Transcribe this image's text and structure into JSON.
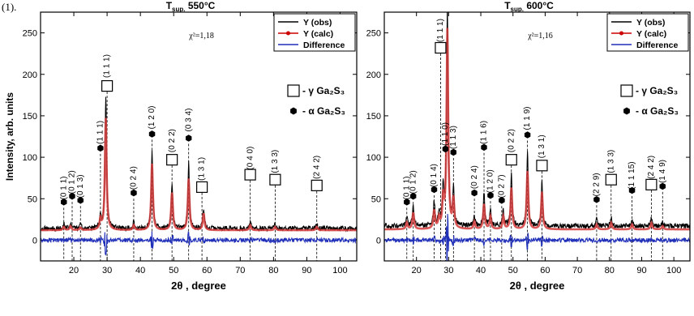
{
  "figure_label": "(1).",
  "colors": {
    "obs": "#000000",
    "calc": "#cc0000",
    "diff": "#1f2fb8",
    "fit_band": "#d23a3a"
  },
  "chart_data": [
    {
      "type": "line",
      "title": "T",
      "title_sub": "sup.",
      "title_rest": " 550°C",
      "xlabel": "2θ , degree",
      "ylabel": "Intensity, arb. units",
      "xlim": [
        10,
        105
      ],
      "ylim": [
        -25,
        275
      ],
      "xticks": [
        20,
        30,
        40,
        50,
        60,
        70,
        80,
        90,
        100
      ],
      "yticks": [
        0,
        50,
        100,
        150,
        200,
        250
      ],
      "chi2": "χ²=1,18",
      "legend": {
        "placement": "top-right",
        "entries": [
          "Y (obs)",
          "Y (calc)",
          "Difference"
        ]
      },
      "phase_legend": [
        {
          "symbol": "square",
          "label": "- γ Ga₂S₃"
        },
        {
          "symbol": "hexagon",
          "label": "- α Ga₂S₃"
        }
      ],
      "series": [
        {
          "name": "Y (obs)",
          "baseline": 14,
          "peaks": [
            [
              17,
              5
            ],
            [
              19,
              6
            ],
            [
              22,
              4
            ],
            [
              28,
              15
            ],
            [
              29.6,
              160
            ],
            [
              38,
              8
            ],
            [
              43.5,
              95
            ],
            [
              49.5,
              55
            ],
            [
              54.5,
              80
            ],
            [
              59,
              25
            ],
            [
              73,
              8
            ],
            [
              80.5,
              5
            ],
            [
              93,
              5
            ]
          ]
        },
        {
          "name": "Y (calc)",
          "baseline": 12,
          "peaks": [
            [
              17,
              4
            ],
            [
              19,
              5
            ],
            [
              22,
              3
            ],
            [
              28,
              12
            ],
            [
              29.6,
              135
            ],
            [
              38,
              6
            ],
            [
              43.5,
              80
            ],
            [
              49.5,
              45
            ],
            [
              54.5,
              62
            ],
            [
              59,
              20
            ],
            [
              73,
              6
            ],
            [
              80.5,
              4
            ],
            [
              93,
              4
            ]
          ]
        },
        {
          "name": "Difference",
          "baseline": 0
        }
      ],
      "annotations": [
        {
          "x": 17,
          "label": "(0 1 1)",
          "marker": "hexagon",
          "text_y": 63,
          "marker_y": 46
        },
        {
          "x": 19.5,
          "label": "(0 1 2)",
          "marker": "hexagon",
          "text_y": 70,
          "marker_y": 53
        },
        {
          "x": 22,
          "label": "(0 1 3)",
          "marker": "hexagon",
          "text_y": 65,
          "marker_y": 48
        },
        {
          "x": 28,
          "label": "(1 1 1)",
          "marker": "hexagon",
          "text_y": 130,
          "marker_y": 111
        },
        {
          "x": 30,
          "label": "(1 1 1)",
          "marker": "square",
          "text_y": 210,
          "marker_y": 186
        },
        {
          "x": 38,
          "label": "(0 2 4)",
          "marker": "hexagon",
          "text_y": 75,
          "marker_y": 57
        },
        {
          "x": 43.5,
          "label": "(1 2 0)",
          "marker": "hexagon",
          "text_y": 148,
          "marker_y": 128
        },
        {
          "x": 49.5,
          "label": "(0 2 2)",
          "marker": "square",
          "text_y": 120,
          "marker_y": 97
        },
        {
          "x": 54.5,
          "label": "(0 3 4)",
          "marker": "hexagon",
          "text_y": 145,
          "marker_y": 123
        },
        {
          "x": 58.5,
          "label": "(1 3 1)",
          "marker": "square",
          "text_y": 86,
          "marker_y": 64
        },
        {
          "x": 73,
          "label": "(0 4 0)",
          "marker": "square",
          "text_y": 99,
          "marker_y": 79
        },
        {
          "x": 80.5,
          "label": "(1 3 3)",
          "marker": "square",
          "text_y": 95,
          "marker_y": 73
        },
        {
          "x": 93,
          "label": "(2 4 2)",
          "marker": "square",
          "text_y": 88,
          "marker_y": 66
        }
      ]
    },
    {
      "type": "line",
      "title": "T",
      "title_sub": "sup.",
      "title_rest": " 600°C",
      "xlabel": "2θ , degree",
      "ylabel": "",
      "xlim": [
        10,
        105
      ],
      "ylim": [
        -25,
        275
      ],
      "xticks": [
        20,
        30,
        40,
        50,
        60,
        70,
        80,
        90,
        100
      ],
      "yticks": [
        0,
        50,
        100,
        150,
        200,
        250
      ],
      "chi2": "χ²=1,16",
      "legend": {
        "placement": "top-right",
        "entries": [
          "Y (obs)",
          "Y (calc)",
          "Difference"
        ]
      },
      "phase_legend": [
        {
          "symbol": "square",
          "label": "- γ Ga₂S₃"
        },
        {
          "symbol": "hexagon",
          "label": "- α Ga₂S₃"
        }
      ],
      "series": [
        {
          "name": "Y (obs)",
          "baseline": 17,
          "peaks": [
            [
              17,
              10
            ],
            [
              19,
              25
            ],
            [
              25.5,
              30
            ],
            [
              27,
              15
            ],
            [
              28.3,
              45
            ],
            [
              29.6,
              265
            ],
            [
              31.5,
              45
            ],
            [
              38,
              12
            ],
            [
              41,
              40
            ],
            [
              43,
              20
            ],
            [
              47,
              20
            ],
            [
              49.5,
              65
            ],
            [
              54.5,
              90
            ],
            [
              59,
              55
            ],
            [
              76,
              8
            ],
            [
              80.5,
              10
            ],
            [
              87,
              8
            ],
            [
              93,
              10
            ],
            [
              96.5,
              5
            ]
          ]
        },
        {
          "name": "Y (calc)",
          "baseline": 13,
          "peaks": [
            [
              17,
              8
            ],
            [
              19,
              20
            ],
            [
              25.5,
              22
            ],
            [
              27,
              12
            ],
            [
              28.3,
              35
            ],
            [
              29.6,
              240
            ],
            [
              31.5,
              35
            ],
            [
              38,
              9
            ],
            [
              41,
              30
            ],
            [
              43,
              15
            ],
            [
              47,
              15
            ],
            [
              49.5,
              50
            ],
            [
              54.5,
              70
            ],
            [
              59,
              45
            ],
            [
              76,
              6
            ],
            [
              80.5,
              8
            ],
            [
              87,
              6
            ],
            [
              93,
              8
            ],
            [
              96.5,
              4
            ]
          ]
        },
        {
          "name": "Difference",
          "baseline": 0
        }
      ],
      "annotations": [
        {
          "x": 17,
          "label": "(0 1 1)",
          "marker": "hexagon",
          "text_y": 63,
          "marker_y": 46
        },
        {
          "x": 19,
          "label": "(0 1 2)",
          "marker": "hexagon",
          "text_y": 70,
          "marker_y": 53
        },
        {
          "x": 25.5,
          "label": "(0 1 4)",
          "marker": "hexagon",
          "text_y": 78,
          "marker_y": 61
        },
        {
          "x": 27.5,
          "label": "(1 1 1)",
          "marker": "square",
          "text_y": 253,
          "marker_y": 232
        },
        {
          "x": 29,
          "label": "(1 1 0)",
          "marker": "hexagon",
          "text_y": 128,
          "marker_y": 110
        },
        {
          "x": 31.5,
          "label": "(1 1 3)",
          "marker": "hexagon",
          "text_y": 124,
          "marker_y": 106
        },
        {
          "x": 38,
          "label": "(0 2 4)",
          "marker": "hexagon",
          "text_y": 76,
          "marker_y": 57
        },
        {
          "x": 41,
          "label": "(1 1 6)",
          "marker": "hexagon",
          "text_y": 130,
          "marker_y": 112
        },
        {
          "x": 43,
          "label": "(1 2 0)",
          "marker": "hexagon",
          "text_y": 71,
          "marker_y": 54
        },
        {
          "x": 46.5,
          "label": "(0 2 7)",
          "marker": "hexagon",
          "text_y": 65,
          "marker_y": 48
        },
        {
          "x": 49.5,
          "label": "(0 2 2)",
          "marker": "square",
          "text_y": 120,
          "marker_y": 97
        },
        {
          "x": 54.5,
          "label": "(1 1 9)",
          "marker": "hexagon",
          "text_y": 147,
          "marker_y": 127
        },
        {
          "x": 59,
          "label": "(1 3 1)",
          "marker": "square",
          "text_y": 113,
          "marker_y": 90
        },
        {
          "x": 76,
          "label": "(2 2 9)",
          "marker": "hexagon",
          "text_y": 67,
          "marker_y": 49
        },
        {
          "x": 80.5,
          "label": "(1 3 3)",
          "marker": "square",
          "text_y": 95,
          "marker_y": 73
        },
        {
          "x": 87,
          "label": "(1 1 15)",
          "marker": "hexagon",
          "text_y": 78,
          "marker_y": 60
        },
        {
          "x": 93,
          "label": "(2 4 2)",
          "marker": "square",
          "text_y": 88,
          "marker_y": 67
        },
        {
          "x": 96.5,
          "label": "(1 4 9)",
          "marker": "hexagon",
          "text_y": 83,
          "marker_y": 65
        }
      ]
    }
  ]
}
